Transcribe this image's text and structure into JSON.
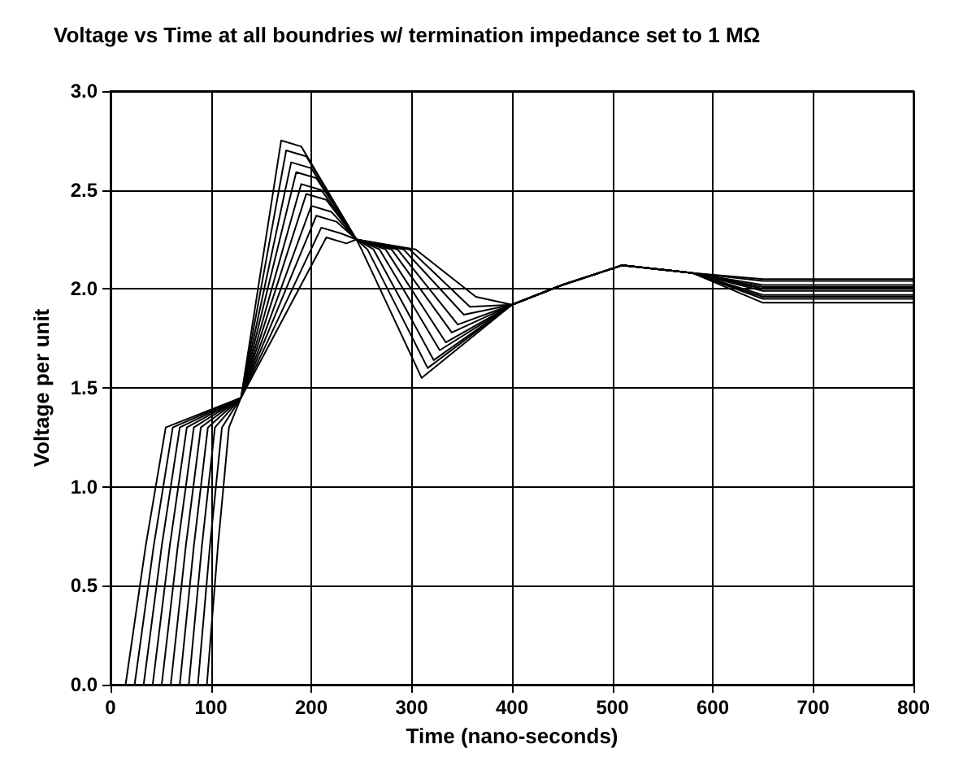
{
  "chart_data": {
    "type": "line",
    "title": "Voltage vs Time at all boundries w/ termination impedance set to 1 MΩ",
    "xlabel": "Time (nano-seconds)",
    "ylabel": "Voltage per unit",
    "xlim": [
      0,
      800
    ],
    "xticks": [
      0,
      100,
      200,
      300,
      400,
      500,
      600,
      700,
      800
    ],
    "ylim": [
      0,
      3
    ],
    "yticks": [
      {
        "value": 0,
        "label": "0.0"
      },
      {
        "value": 0.5,
        "label": "0.5"
      },
      {
        "value": 1,
        "label": "1.0"
      },
      {
        "value": 1.5,
        "label": "1.5"
      },
      {
        "value": 2,
        "label": "2.0"
      },
      {
        "value": 2.5,
        "label": "2.5"
      },
      {
        "value": 3,
        "label": "3.0"
      }
    ],
    "grid": true,
    "marker": "none",
    "line_style": "solid",
    "series": [
      {
        "color": "#000000",
        "x": [
          0,
          15,
          35,
          55,
          130,
          170,
          190,
          245,
          250,
          310,
          400,
          450,
          510,
          580,
          650,
          800
        ],
        "values": [
          0,
          0,
          0.7,
          1.3,
          1.45,
          2.75,
          2.72,
          2.25,
          2.2,
          1.55,
          1.92,
          2.02,
          2.12,
          2.08,
          2.05,
          2.05
        ]
      },
      {
        "color": "#000000",
        "x": [
          0,
          24,
          43,
          62,
          130,
          175,
          195,
          245,
          256,
          316,
          400,
          450,
          510,
          580,
          650,
          800
        ],
        "values": [
          0,
          0,
          0.7,
          1.3,
          1.45,
          2.7,
          2.67,
          2.25,
          2.2,
          1.6,
          1.92,
          2.02,
          2.12,
          2.08,
          2.04,
          2.04
        ]
      },
      {
        "color": "#000000",
        "x": [
          0,
          33,
          51,
          69,
          130,
          180,
          200,
          245,
          262,
          322,
          400,
          450,
          510,
          580,
          650,
          800
        ],
        "values": [
          0,
          0,
          0.7,
          1.3,
          1.45,
          2.64,
          2.61,
          2.25,
          2.2,
          1.64,
          1.92,
          2.02,
          2.12,
          2.08,
          2.02,
          2.02
        ]
      },
      {
        "color": "#000000",
        "x": [
          0,
          42,
          59,
          76,
          130,
          185,
          205,
          245,
          268,
          328,
          400,
          450,
          510,
          580,
          650,
          800
        ],
        "values": [
          0,
          0,
          0.7,
          1.3,
          1.45,
          2.59,
          2.56,
          2.25,
          2.2,
          1.69,
          1.92,
          2.02,
          2.12,
          2.08,
          2.01,
          2.01
        ]
      },
      {
        "color": "#000000",
        "x": [
          0,
          51,
          67,
          83,
          130,
          190,
          210,
          245,
          274,
          334,
          400,
          450,
          510,
          580,
          650,
          800
        ],
        "values": [
          0,
          0,
          0.7,
          1.3,
          1.45,
          2.53,
          2.5,
          2.25,
          2.2,
          1.73,
          1.92,
          2.02,
          2.12,
          2.08,
          2.0,
          2.0
        ]
      },
      {
        "color": "#000000",
        "x": [
          0,
          60,
          75,
          90,
          130,
          195,
          215,
          245,
          280,
          340,
          400,
          450,
          510,
          580,
          650,
          800
        ],
        "values": [
          0,
          0,
          0.7,
          1.3,
          1.45,
          2.48,
          2.45,
          2.25,
          2.2,
          1.78,
          1.92,
          2.02,
          2.12,
          2.08,
          1.99,
          1.99
        ]
      },
      {
        "color": "#000000",
        "x": [
          0,
          69,
          83,
          97,
          130,
          200,
          220,
          245,
          286,
          346,
          400,
          450,
          510,
          580,
          650,
          800
        ],
        "values": [
          0,
          0,
          0.7,
          1.3,
          1.45,
          2.42,
          2.39,
          2.25,
          2.2,
          1.82,
          1.92,
          2.02,
          2.12,
          2.08,
          1.97,
          1.97
        ]
      },
      {
        "color": "#000000",
        "x": [
          0,
          78,
          91,
          104,
          130,
          205,
          225,
          245,
          292,
          352,
          400,
          450,
          510,
          580,
          650,
          800
        ],
        "values": [
          0,
          0,
          0.7,
          1.3,
          1.45,
          2.37,
          2.34,
          2.25,
          2.2,
          1.87,
          1.92,
          2.02,
          2.12,
          2.08,
          1.96,
          1.96
        ]
      },
      {
        "color": "#000000",
        "x": [
          0,
          87,
          99,
          111,
          130,
          210,
          230,
          245,
          298,
          358,
          400,
          450,
          510,
          580,
          650,
          800
        ],
        "values": [
          0,
          0,
          0.7,
          1.3,
          1.45,
          2.31,
          2.28,
          2.25,
          2.2,
          1.91,
          1.92,
          2.02,
          2.12,
          2.08,
          1.95,
          1.95
        ]
      },
      {
        "color": "#000000",
        "x": [
          0,
          96,
          107,
          118,
          130,
          215,
          235,
          245,
          304,
          364,
          400,
          450,
          510,
          580,
          650,
          800
        ],
        "values": [
          0,
          0,
          0.7,
          1.3,
          1.45,
          2.26,
          2.23,
          2.25,
          2.2,
          1.96,
          1.92,
          2.02,
          2.12,
          2.08,
          1.93,
          1.93
        ]
      }
    ]
  }
}
